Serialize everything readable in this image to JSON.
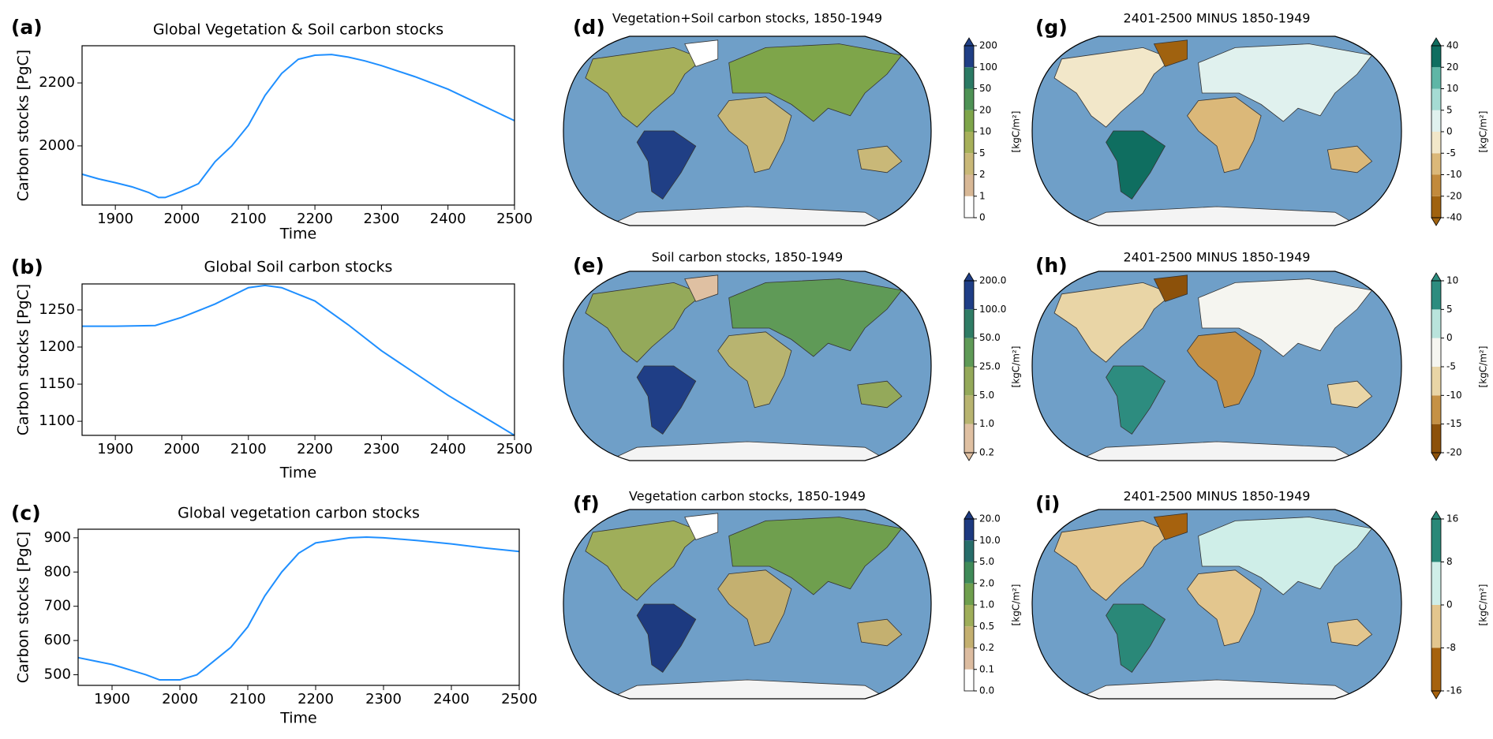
{
  "chart_data": [
    {
      "type": "line",
      "panel": "(a)",
      "title": "Global Vegetation & Soil carbon stocks",
      "xlabel": "Time",
      "ylabel": "Carbon stocks [PgC]",
      "x": [
        1850,
        1875,
        1900,
        1925,
        1950,
        1965,
        1975,
        2000,
        2025,
        2050,
        2075,
        2100,
        2125,
        2150,
        2175,
        2200,
        2225,
        2250,
        2275,
        2300,
        2350,
        2400,
        2450,
        2500
      ],
      "values": [
        1910,
        1895,
        1883,
        1870,
        1852,
        1836,
        1836,
        1856,
        1880,
        1950,
        2000,
        2065,
        2160,
        2230,
        2275,
        2288,
        2290,
        2282,
        2270,
        2255,
        2220,
        2180,
        2130,
        2080
      ],
      "color": "#1f8fff",
      "xlim": [
        1850,
        2500
      ],
      "xticks": [
        1900,
        2000,
        2100,
        2200,
        2300,
        2400,
        2500
      ],
      "ylim": [
        1812,
        2318
      ],
      "yticks": [
        2000,
        2200
      ]
    },
    {
      "type": "line",
      "panel": "(b)",
      "title": "Global Soil carbon stocks",
      "xlabel": "Time",
      "ylabel": "Carbon stocks [PgC]",
      "x": [
        1850,
        1900,
        1960,
        2000,
        2050,
        2100,
        2125,
        2150,
        2200,
        2250,
        2300,
        2350,
        2400,
        2450,
        2500
      ],
      "values": [
        1228,
        1228,
        1229,
        1240,
        1258,
        1280,
        1283,
        1280,
        1262,
        1230,
        1195,
        1165,
        1135,
        1108,
        1081
      ],
      "color": "#1f8fff",
      "xlim": [
        1850,
        2500
      ],
      "xticks": [
        1900,
        2000,
        2100,
        2200,
        2300,
        2400,
        2500
      ],
      "ylim": [
        1081,
        1285
      ],
      "yticks": [
        1100,
        1150,
        1200,
        1250
      ]
    },
    {
      "type": "line",
      "panel": "(c)",
      "title": "Global vegetation carbon stocks",
      "xlabel": "Time",
      "ylabel": "Carbon stocks [PgC]",
      "x": [
        1850,
        1900,
        1950,
        1970,
        2000,
        2025,
        2050,
        2075,
        2100,
        2125,
        2150,
        2175,
        2200,
        2250,
        2275,
        2300,
        2350,
        2400,
        2450,
        2500
      ],
      "values": [
        550,
        530,
        500,
        485,
        485,
        500,
        540,
        580,
        640,
        730,
        800,
        855,
        885,
        900,
        902,
        900,
        892,
        882,
        870,
        860
      ],
      "color": "#1f8fff",
      "xlim": [
        1850,
        2500
      ],
      "xticks": [
        1900,
        2000,
        2100,
        2200,
        2300,
        2400,
        2500
      ],
      "ylim": [
        469,
        925
      ],
      "yticks": [
        500,
        600,
        700,
        800,
        900
      ]
    },
    {
      "type": "map",
      "panel": "(d)",
      "title": "Vegetation+Soil carbon stocks, 1850-1949",
      "colorbar": {
        "label": "[kgC/m²]",
        "extend": "max",
        "ticks": [
          0,
          1,
          2,
          5,
          10,
          20,
          50,
          100,
          200
        ],
        "colors": [
          "#ffffff",
          "#d8b896",
          "#c9b878",
          "#a7b05a",
          "#7ea54a",
          "#4e9255",
          "#2b7a64",
          "#203f85"
        ]
      }
    },
    {
      "type": "map",
      "panel": "(e)",
      "title": "Soil carbon stocks, 1850-1949",
      "colorbar": {
        "label": "[kgC/m²]",
        "extend": "both",
        "ticks": [
          0.2,
          {
            "value": 1,
            "label": "1.0"
          },
          {
            "value": 5,
            "label": "5.0"
          },
          {
            "value": 25,
            "label": "25.0"
          },
          {
            "value": 50,
            "label": "50.0"
          },
          {
            "value": 100,
            "label": "100.0"
          },
          {
            "value": 200,
            "label": "200.0"
          }
        ],
        "colors": [
          "#dfc0a2",
          "#b8b470",
          "#94a95a",
          "#5f9a57",
          "#2f7c65",
          "#1f3e86"
        ]
      }
    },
    {
      "type": "map",
      "panel": "(f)",
      "title": "Vegetation carbon stocks, 1850-1949",
      "colorbar": {
        "label": "[kgC/m²]",
        "extend": "max",
        "ticks": [
          {
            "value": 0,
            "label": "0.0"
          },
          0.1,
          0.2,
          0.5,
          {
            "value": 1,
            "label": "1.0"
          },
          {
            "value": 2,
            "label": "2.0"
          },
          {
            "value": 5,
            "label": "5.0"
          },
          {
            "value": 10,
            "label": "10.0"
          },
          {
            "value": 20,
            "label": "20.0"
          }
        ],
        "colors": [
          "#ffffff",
          "#dcbca0",
          "#c4b070",
          "#9fae5a",
          "#6f9f4e",
          "#3f8a58",
          "#276d6a",
          "#1d3a80"
        ]
      }
    },
    {
      "type": "map",
      "panel": "(g)",
      "title": "2401-2500 MINUS 1850-1949",
      "colorbar": {
        "label": "[kgC/m²]",
        "extend": "both",
        "ticks": [
          -40,
          -20,
          -10,
          -5,
          0,
          5,
          10,
          20,
          40
        ],
        "colors": [
          "#a0620f",
          "#c28a3c",
          "#dbb879",
          "#f2e7c9",
          "#e0f1ee",
          "#a5dbd3",
          "#5fb6a6",
          "#0f6e60"
        ]
      }
    },
    {
      "type": "map",
      "panel": "(h)",
      "title": "2401-2500 MINUS 1850-1949",
      "colorbar": {
        "label": "[kgC/m²]",
        "extend": "both",
        "ticks": [
          -20,
          -15,
          -10,
          -5,
          0,
          5,
          10
        ],
        "colors": [
          "#8c510a",
          "#c59145",
          "#e9d5a6",
          "#f5f5f0",
          "#b9e3dc",
          "#2d8c7f"
        ]
      }
    },
    {
      "type": "map",
      "panel": "(i)",
      "title": "2401-2500 MINUS 1850-1949",
      "colorbar": {
        "label": "[kgC/m²]",
        "extend": "both",
        "ticks": [
          -16,
          -8,
          0,
          8,
          16
        ],
        "colors": [
          "#a6620e",
          "#e3c68e",
          "#cfeee8",
          "#2a8878"
        ]
      }
    }
  ]
}
